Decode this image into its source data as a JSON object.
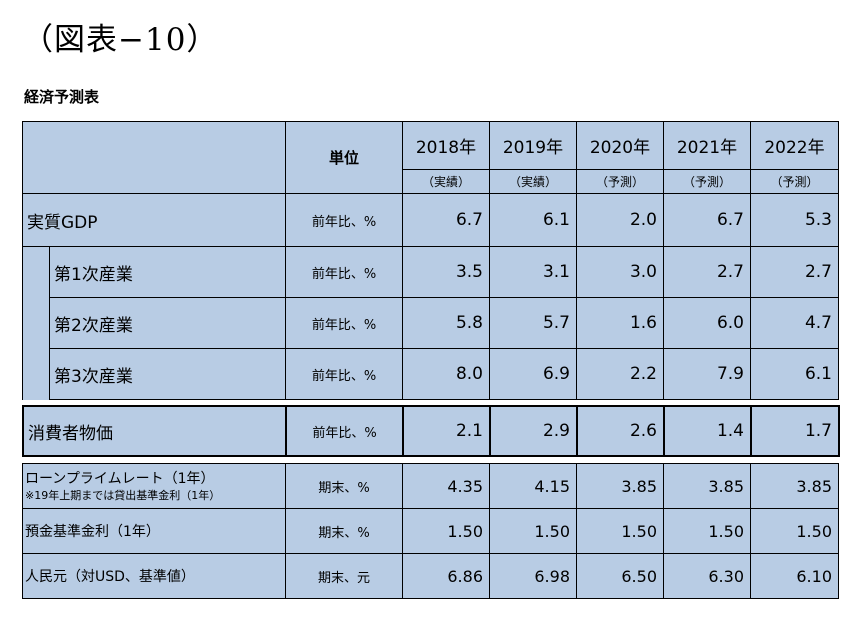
{
  "figure_title": "（図表−10）",
  "subtitle": "経済予測表",
  "header": {
    "unit_label": "単位",
    "years": [
      "2018年",
      "2019年",
      "2020年",
      "2021年",
      "2022年"
    ],
    "annotations": [
      "（実績）",
      "（実績）",
      "（予測）",
      "（予測）",
      "（予測）"
    ]
  },
  "gdp_rows": [
    {
      "label": "実質GDP",
      "unit": "前年比、%",
      "values": [
        "6.7",
        "6.1",
        "2.0",
        "6.7",
        "5.3"
      ]
    },
    {
      "label": "第1次産業",
      "unit": "前年比、%",
      "values": [
        "3.5",
        "3.1",
        "3.0",
        "2.7",
        "2.7"
      ]
    },
    {
      "label": "第2次産業",
      "unit": "前年比、%",
      "values": [
        "5.8",
        "5.7",
        "1.6",
        "6.0",
        "4.7"
      ]
    },
    {
      "label": "第3次産業",
      "unit": "前年比、%",
      "values": [
        "8.0",
        "6.9",
        "2.2",
        "7.9",
        "6.1"
      ]
    }
  ],
  "cpi_row": {
    "label": "消費者物価",
    "unit": "前年比、%",
    "values": [
      "2.1",
      "2.9",
      "2.6",
      "1.4",
      "1.7"
    ]
  },
  "rate_rows": [
    {
      "label": "ローンプライムレート（1年）",
      "note": "※19年上期までは貸出基準金利（1年）",
      "unit": "期末、%",
      "values": [
        "4.35",
        "4.15",
        "3.85",
        "3.85",
        "3.85"
      ]
    },
    {
      "label": "預金基準金利（1年）",
      "unit": "期末、%",
      "values": [
        "1.50",
        "1.50",
        "1.50",
        "1.50",
        "1.50"
      ]
    },
    {
      "label": "人民元（対USD、基準値）",
      "unit": "期末、元",
      "values": [
        "6.86",
        "6.98",
        "6.50",
        "6.30",
        "6.10"
      ]
    }
  ]
}
